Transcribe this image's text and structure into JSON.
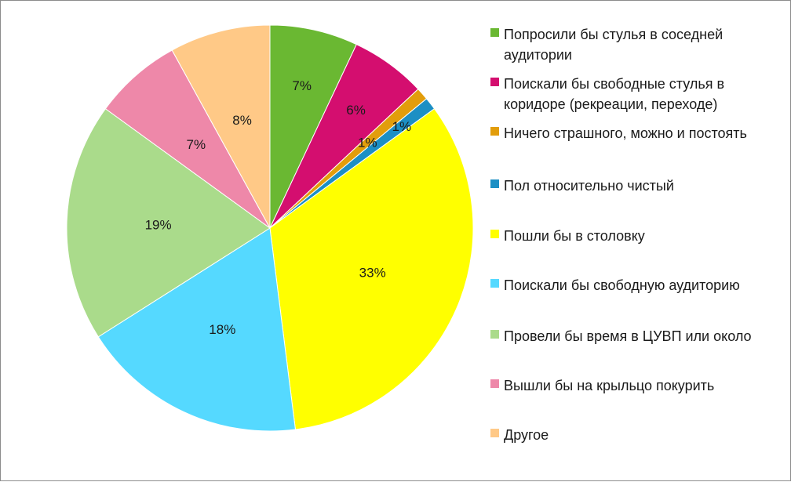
{
  "chart_data": {
    "type": "pie",
    "start_angle_deg": 0,
    "direction": "clockwise",
    "legend_position": "right",
    "slices": [
      {
        "label": "Попросили бы стулья в соседней аудитории",
        "value": 7,
        "display": "7%",
        "color": "#6ab832"
      },
      {
        "label": "Поискали бы свободные стулья в коридоре (рекреации, переходе)",
        "value": 6,
        "display": "6%",
        "color": "#d40e6f"
      },
      {
        "label": "Ничего страшного, можно и постоять",
        "value": 1,
        "display": "1%",
        "color": "#e29d0b"
      },
      {
        "label": "Пол относительно чистый",
        "value": 1,
        "display": "1%",
        "color": "#1c8fc4"
      },
      {
        "label": "Пошли бы в столовку",
        "value": 33,
        "display": "33%",
        "color": "#ffff00"
      },
      {
        "label": "Поискали бы свободную аудиторию",
        "value": 18,
        "display": "18%",
        "color": "#55d9ff"
      },
      {
        "label": "Провели бы время в ЦУВП или около",
        "value": 19,
        "display": "19%",
        "color": "#aadb8b"
      },
      {
        "label": "Вышли бы на крыльцо покурить",
        "value": 7,
        "display": "7%",
        "color": "#ee88a9"
      },
      {
        "label": "Другое",
        "value": 8,
        "display": "8%",
        "color": "#ffc987"
      }
    ]
  }
}
